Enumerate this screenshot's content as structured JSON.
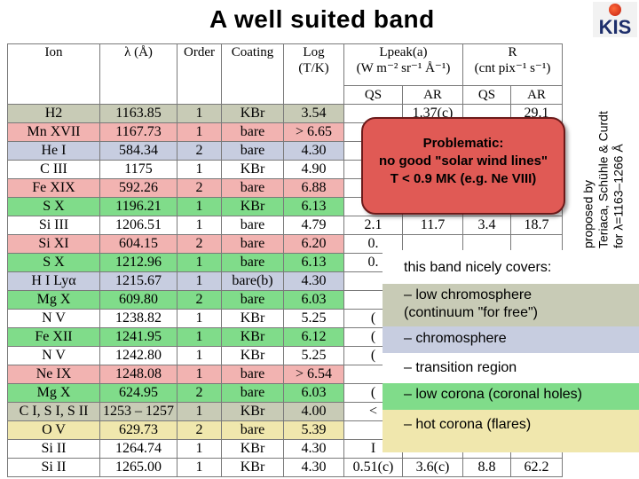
{
  "title": "A well suited band",
  "logo": {
    "text": "KIS",
    "colors": {
      "sun": "#d2271a",
      "text": "#1d2e6b"
    }
  },
  "side_label": {
    "lines": [
      "proposed by",
      "Teriaca, Schühle & Curdt",
      "for λ=1163–1266 Å"
    ]
  },
  "table": {
    "headers": {
      "ion": "Ion",
      "lambda": "λ (Å)",
      "order": "Order",
      "coating": "Coating",
      "log": "Log",
      "log_unit": "(T/K)",
      "lpeak": "Lpeak(a)",
      "lpeak_unit": "(W m⁻² sr⁻¹ Å⁻¹)",
      "r": "R",
      "r_unit": "(cnt pix⁻¹ s⁻¹)"
    },
    "subheaders": [
      "QS",
      "AR",
      "QS",
      "AR"
    ],
    "rows": [
      {
        "ion": "H2",
        "lambda": "1163.85",
        "order": "1",
        "coating": "KBr",
        "log": "3.54",
        "lqs": "",
        "lar": "1.37(c)",
        "rqs": "",
        "rar": "29.1",
        "bg": "#c8cbb6"
      },
      {
        "ion": "Mn XVII",
        "lambda": "1167.73",
        "order": "1",
        "coating": "bare",
        "log": "> 6.65",
        "lqs": "",
        "lar": "",
        "rqs": "",
        "rar": "",
        "bg": "#f2b3b1"
      },
      {
        "ion": "He I",
        "lambda": "584.34",
        "order": "2",
        "coating": "bare",
        "log": "4.30",
        "lqs": "",
        "lar": "",
        "rqs": "",
        "rar": "",
        "bg": "#c7cde0"
      },
      {
        "ion": "C III",
        "lambda": "1175",
        "order": "1",
        "coating": "KBr",
        "log": "4.90",
        "lqs": "",
        "lar": "",
        "rqs": "",
        "rar": "",
        "bg": "#ffffff"
      },
      {
        "ion": "Fe XIX",
        "lambda": "592.26",
        "order": "2",
        "coating": "bare",
        "log": "6.88",
        "lqs": "",
        "lar": "",
        "rqs": "",
        "rar": "",
        "bg": "#f2b3b1"
      },
      {
        "ion": "S X",
        "lambda": "1196.21",
        "order": "1",
        "coating": "KBr",
        "log": "6.13",
        "lqs": "",
        "lar": "",
        "rqs": "",
        "rar": "",
        "bg": "#80dc8a"
      },
      {
        "ion": "Si III",
        "lambda": "1206.51",
        "order": "1",
        "coating": "bare",
        "log": "4.79",
        "lqs": "2.1",
        "lar": "11.7",
        "rqs": "3.4",
        "rar": "18.7",
        "bg": "#ffffff"
      },
      {
        "ion": "Si XI",
        "lambda": "604.15",
        "order": "2",
        "coating": "bare",
        "log": "6.20",
        "lqs": "0.",
        "lar": "",
        "rqs": "",
        "rar": "",
        "bg": "#f2b3b1"
      },
      {
        "ion": "S X",
        "lambda": "1212.96",
        "order": "1",
        "coating": "bare",
        "log": "6.13",
        "lqs": "0.",
        "lar": "",
        "rqs": "",
        "rar": "",
        "bg": "#80dc8a"
      },
      {
        "ion": "H I Lyα",
        "lambda": "1215.67",
        "order": "1",
        "coating": "bare(b)",
        "log": "4.30",
        "lqs": "",
        "lar": "",
        "rqs": "",
        "rar": "",
        "bg": "#c7cde0"
      },
      {
        "ion": "Mg X",
        "lambda": "609.80",
        "order": "2",
        "coating": "bare",
        "log": "6.03",
        "lqs": "",
        "lar": "",
        "rqs": "",
        "rar": "",
        "bg": "#80dc8a"
      },
      {
        "ion": "N V",
        "lambda": "1238.82",
        "order": "1",
        "coating": "KBr",
        "log": "5.25",
        "lqs": "(",
        "lar": "",
        "rqs": "",
        "rar": "",
        "bg": "#ffffff"
      },
      {
        "ion": "Fe XII",
        "lambda": "1241.95",
        "order": "1",
        "coating": "KBr",
        "log": "6.12",
        "lqs": "(",
        "lar": "",
        "rqs": "",
        "rar": "",
        "bg": "#80dc8a"
      },
      {
        "ion": "N V",
        "lambda": "1242.80",
        "order": "1",
        "coating": "KBr",
        "log": "5.25",
        "lqs": "(",
        "lar": "",
        "rqs": "",
        "rar": "",
        "bg": "#ffffff"
      },
      {
        "ion": "Ne IX",
        "lambda": "1248.08",
        "order": "1",
        "coating": "bare",
        "log": "> 6.54",
        "lqs": "",
        "lar": "",
        "rqs": "",
        "rar": "",
        "bg": "#f2b3b1"
      },
      {
        "ion": "Mg X",
        "lambda": "624.95",
        "order": "2",
        "coating": "bare",
        "log": "6.03",
        "lqs": "(",
        "lar": "",
        "rqs": "",
        "rar": "",
        "bg": "#80dc8a"
      },
      {
        "ion": "C I, S I, S II",
        "lambda": "1253 – 1257",
        "order": "1",
        "coating": "KBr",
        "log": "4.00",
        "lqs": "<",
        "lar": "",
        "rqs": "",
        "rar": "",
        "bg": "#c8cbb6"
      },
      {
        "ion": "O V",
        "lambda": "629.73",
        "order": "2",
        "coating": "bare",
        "log": "5.39",
        "lqs": "",
        "lar": "",
        "rqs": "",
        "rar": "",
        "bg": "#f0e7ad"
      },
      {
        "ion": "Si II",
        "lambda": "1264.74",
        "order": "1",
        "coating": "KBr",
        "log": "4.30",
        "lqs": "I",
        "lar": "",
        "rqs": "",
        "rar": "",
        "bg": "#ffffff"
      },
      {
        "ion": "Si II",
        "lambda": "1265.00",
        "order": "1",
        "coating": "KBr",
        "log": "4.30",
        "lqs": "0.51(c)",
        "lar": "3.6(c)",
        "rqs": "8.8",
        "rar": "62.2",
        "bg": "#ffffff"
      }
    ]
  },
  "problem_box": {
    "lines": [
      "Problematic:",
      "no good \"solar wind lines\"",
      "T < 0.9 MK  (e.g. Ne VIII)"
    ],
    "color": "#e05a55"
  },
  "coverage": {
    "heading": "this band nicely covers:",
    "items": [
      {
        "text": "– low chromosphere\n   (continuum \"for free\")",
        "color": "#c8cbb6"
      },
      {
        "text": "– chromosphere",
        "color": "#c7cde0"
      },
      {
        "text": "– transition region",
        "color": "#ffffff"
      },
      {
        "text": "– low corona (coronal holes)",
        "color": "#80dc8a"
      },
      {
        "text": "– hot corona (flares)",
        "color": "#f0e7ad"
      }
    ]
  }
}
